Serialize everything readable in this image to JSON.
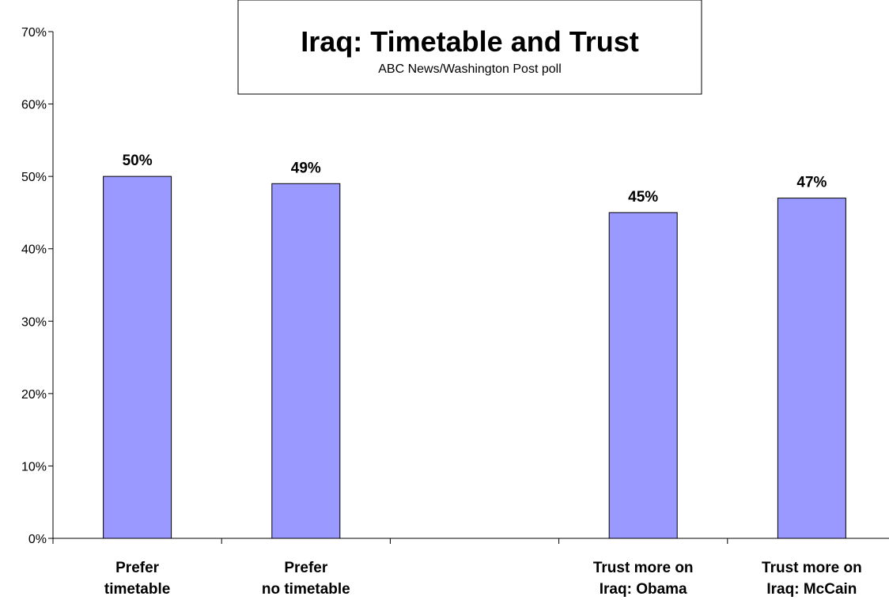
{
  "chart_data": {
    "type": "bar",
    "title": "Iraq: Timetable and Trust",
    "subtitle": "ABC News/Washington Post poll",
    "xlabel": "",
    "ylabel": "",
    "ylim": [
      0,
      0.7
    ],
    "y_ticks": [
      "0%",
      "10%",
      "20%",
      "30%",
      "40%",
      "50%",
      "60%",
      "70%"
    ],
    "categories": [
      [
        "Prefer",
        "timetable"
      ],
      [
        "Prefer",
        "no timetable"
      ],
      [
        "",
        ""
      ],
      [
        "Trust more on",
        "Iraq: Obama"
      ],
      [
        "Trust more on",
        "Iraq: McCain"
      ]
    ],
    "values": [
      0.5,
      0.49,
      null,
      0.45,
      0.47
    ],
    "data_labels": [
      "50%",
      "49%",
      "",
      "45%",
      "47%"
    ],
    "bar_color": "#9999ff",
    "bar_edge_color": "#000000",
    "grid": false,
    "legend": "none"
  }
}
